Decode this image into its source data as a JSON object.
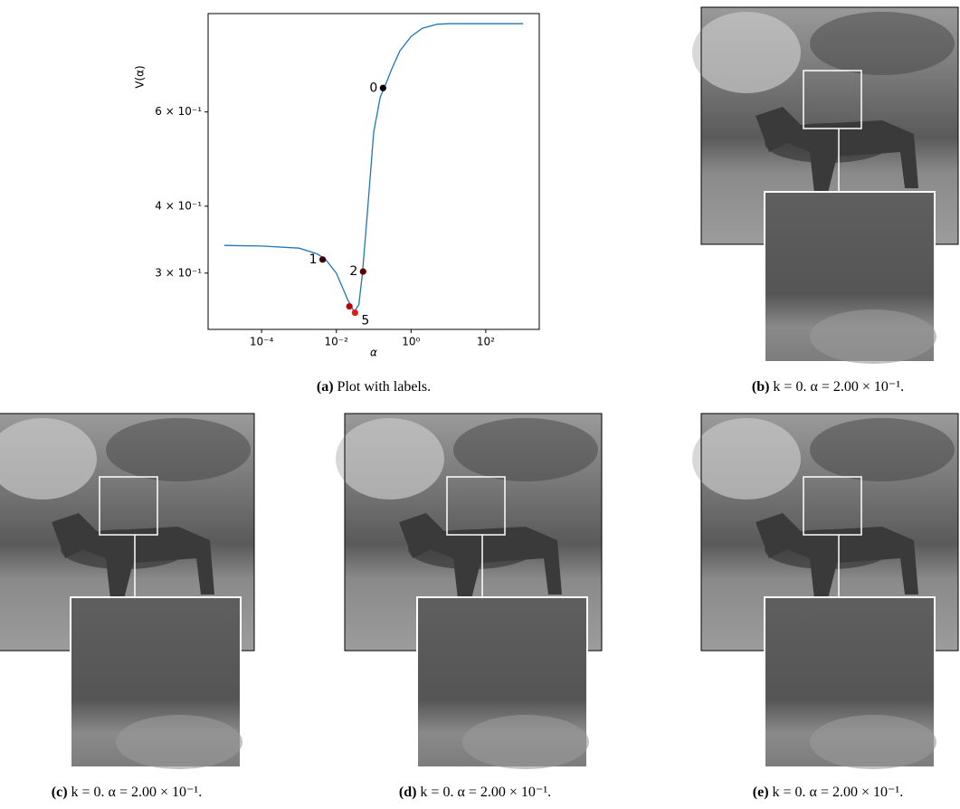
{
  "chart_data": {
    "type": "line",
    "x_label": "α",
    "y_label": "V(α)",
    "log_x": true,
    "log_y": true,
    "xlim": [
      3.7e-06,
      2700
    ],
    "ylim": [
      0.2355,
      0.916
    ],
    "xticks": [
      {
        "value": 0.0001,
        "label": "10⁻⁴"
      },
      {
        "value": 0.01,
        "label": "10⁻²"
      },
      {
        "value": 1,
        "label": "10⁰"
      },
      {
        "value": 100,
        "label": "10²"
      }
    ],
    "yticks": [
      {
        "value": 0.3,
        "label": "3 × 10⁻¹"
      },
      {
        "value": 0.4,
        "label": "4 × 10⁻¹"
      },
      {
        "value": 0.6,
        "label": "6 × 10⁻¹"
      }
    ],
    "series": [
      {
        "color": "#1f77b4",
        "x": [
          1e-05,
          0.0001,
          0.001,
          0.003,
          0.005,
          0.01,
          0.02,
          0.03,
          0.04,
          0.05,
          0.07,
          0.1,
          0.15,
          0.2,
          0.3,
          0.5,
          1,
          2,
          5,
          10,
          100,
          1000
        ],
        "values": [
          0.338,
          0.337,
          0.334,
          0.326,
          0.319,
          0.3,
          0.268,
          0.254,
          0.262,
          0.3,
          0.4,
          0.55,
          0.64,
          0.67,
          0.72,
          0.78,
          0.83,
          0.86,
          0.875,
          0.877,
          0.877,
          0.877
        ]
      }
    ],
    "points": {
      "labels": [
        "0",
        "1",
        "2",
        null,
        "5"
      ],
      "colors": [
        "#000000",
        "#3a0000",
        "#5a0000",
        "#c00000",
        "#e41a1a"
      ],
      "x": [
        0.178,
        0.0043,
        0.052,
        0.0224,
        0.0316
      ],
      "values": [
        0.665,
        0.318,
        0.302,
        0.26,
        0.253
      ]
    }
  },
  "captions": [
    {
      "tag": "(a)",
      "text": "Plot with labels."
    },
    {
      "tag": "(b)",
      "text": "k = 0. α = 2.00 × 10⁻¹."
    },
    {
      "tag": "(c)",
      "text": "k = 0. α = 2.00 × 10⁻¹."
    },
    {
      "tag": "(d)",
      "text": "k = 0. α = 2.00 × 10⁻¹."
    },
    {
      "tag": "(e)",
      "text": "k = 0. α = 2.00 × 10⁻¹."
    }
  ]
}
